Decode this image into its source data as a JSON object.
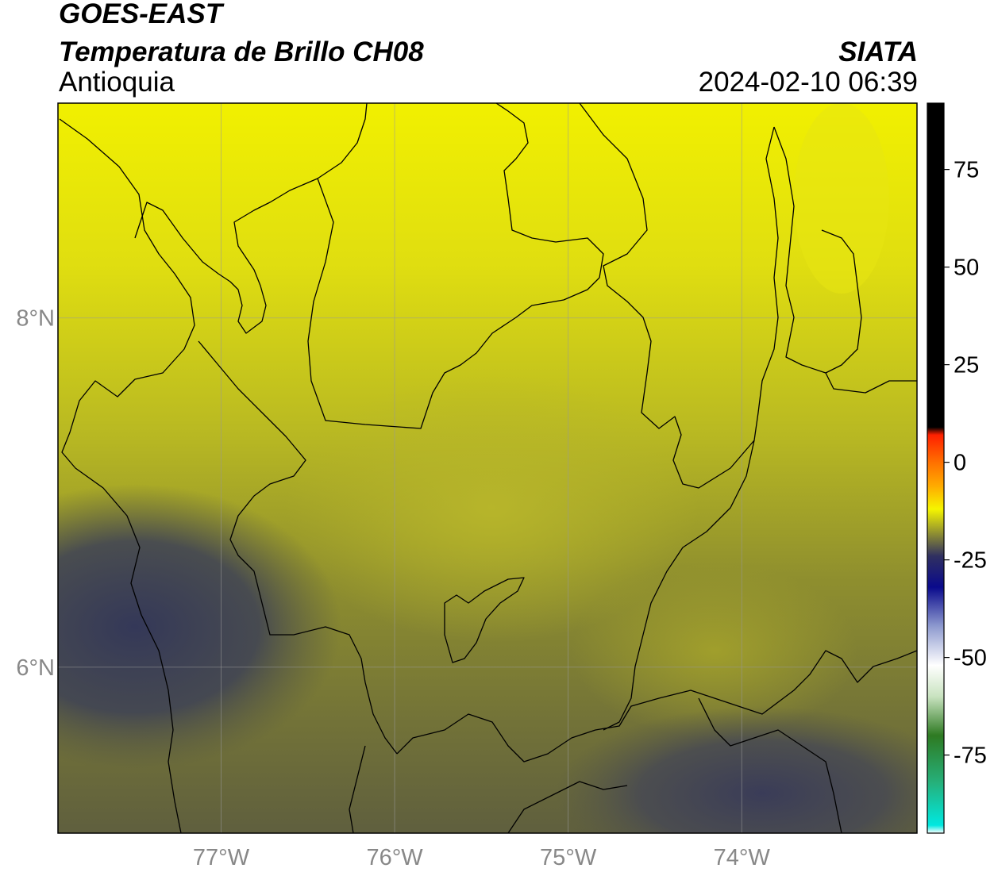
{
  "header": {
    "satellite": "GOES-EAST",
    "product": "Temperatura de Brillo CH08",
    "region": "Antioquia",
    "agency": "SIATA",
    "timestamp": "2024-02-10 06:39"
  },
  "map": {
    "extent": {
      "lon_min": -77.94,
      "lon_max": -72.99,
      "lat_min": 5.05,
      "lat_max": 9.23
    },
    "grid_lats": [
      8,
      6
    ],
    "grid_lons": [
      -77,
      -76,
      -75,
      -74
    ],
    "lat_labels": [
      "8°N",
      "6°N"
    ],
    "lon_labels": [
      "77°W",
      "76°W",
      "75°W",
      "74°W"
    ]
  },
  "colorbar": {
    "vmin": -95,
    "vmax": 92,
    "ticks": [
      75,
      50,
      25,
      0,
      -25,
      -50,
      -75
    ],
    "tick_labels": [
      "75",
      "50",
      "25",
      "0",
      "-25",
      "-50",
      "-75"
    ],
    "stops": [
      {
        "v": -95,
        "c": "#ffffff"
      },
      {
        "v": -93,
        "c": "#00e8e0"
      },
      {
        "v": -82,
        "c": "#26b07a"
      },
      {
        "v": -70,
        "c": "#2e7a22"
      },
      {
        "v": -60,
        "c": "#c9e3c0"
      },
      {
        "v": -52,
        "c": "#ffffff"
      },
      {
        "v": -42,
        "c": "#8e9acf"
      },
      {
        "v": -32,
        "c": "#0a0a8c"
      },
      {
        "v": -24,
        "c": "#303060"
      },
      {
        "v": -12,
        "c": "#f5f500"
      },
      {
        "v": -6,
        "c": "#ffaa00"
      },
      {
        "v": 0,
        "c": "#ff7000"
      },
      {
        "v": 7,
        "c": "#ff2000"
      },
      {
        "v": 9,
        "c": "#000000"
      },
      {
        "v": 92,
        "c": "#000000"
      }
    ],
    "colors": {
      "frame": "#000000",
      "grid": "#999999",
      "borders": "#000000"
    }
  }
}
